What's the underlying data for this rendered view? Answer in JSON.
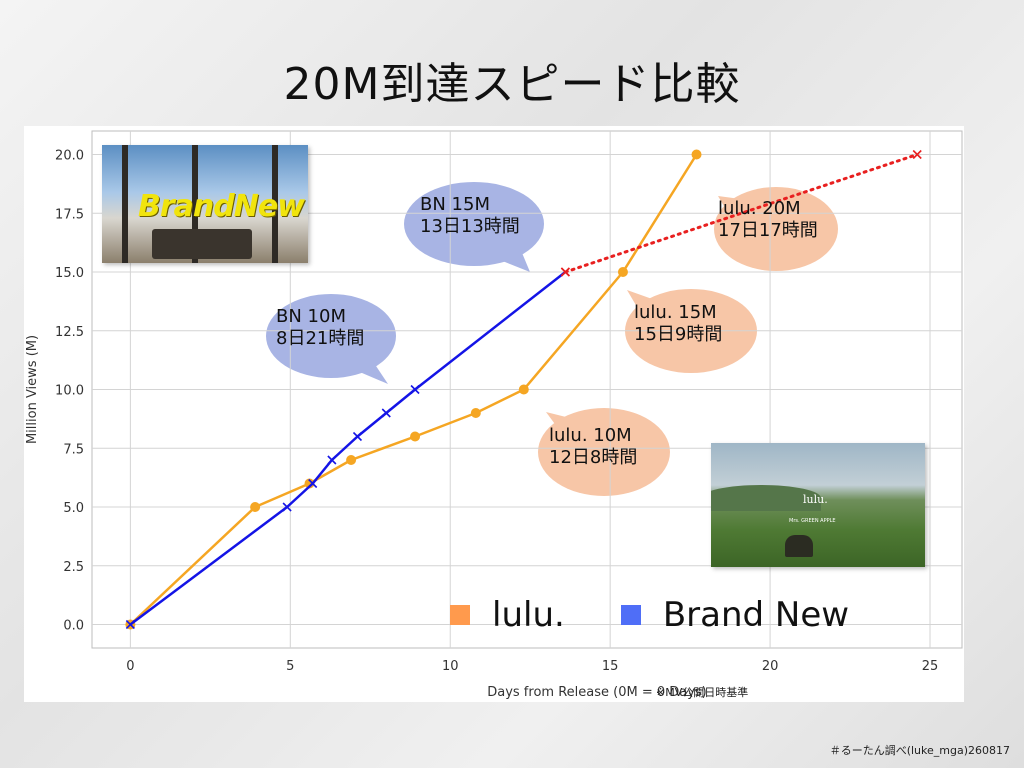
{
  "title": "20M到達スピード比較",
  "note": "※MV公開日時基準",
  "footer": "＃るーたん調べ(luke_mga)260817",
  "chart_data": {
    "type": "line",
    "xlabel": "Days from Release (0M = 0 Days)",
    "ylabel": "Million Views (M)",
    "xlim": [
      -1.2,
      26
    ],
    "ylim": [
      -1,
      21
    ],
    "x_ticks": [
      0,
      5,
      10,
      15,
      20,
      25
    ],
    "y_ticks": [
      0.0,
      2.5,
      5.0,
      7.5,
      10.0,
      12.5,
      15.0,
      17.5,
      20.0
    ],
    "grid": true,
    "legend_position": "bottom-right",
    "series": [
      {
        "name": "lulu.",
        "color": "#f5a623",
        "marker": "circle",
        "x": [
          0,
          3.9,
          5.6,
          6.9,
          8.9,
          10.8,
          12.3,
          15.4,
          17.7
        ],
        "y": [
          0,
          5,
          6,
          7,
          8,
          9,
          10,
          15,
          20
        ]
      },
      {
        "name": "Brand New",
        "color": "#1414e6",
        "marker": "x",
        "x": [
          0,
          4.9,
          5.7,
          6.3,
          7.1,
          8.0,
          8.9,
          13.6
        ],
        "y": [
          0,
          5,
          6,
          7,
          8,
          9,
          10,
          15
        ]
      },
      {
        "name": "Brand New projection",
        "color": "#e82020",
        "style": "dotted",
        "marker": "x",
        "x": [
          13.6,
          24.6
        ],
        "y": [
          15,
          20
        ]
      }
    ],
    "legend": [
      {
        "label": "lulu.",
        "color": "#ff9a4d"
      },
      {
        "label": "Brand New",
        "color": "#4f6ef7"
      }
    ],
    "annotations": [
      {
        "id": "bn15",
        "lines": [
          "BN 15M",
          "13日13時間"
        ],
        "color": "#a8b4e4"
      },
      {
        "id": "bn10",
        "lines": [
          "BN 10M",
          "8日21時間"
        ],
        "color": "#a8b4e4"
      },
      {
        "id": "lulu20",
        "lines": [
          "lulu. 20M",
          "17日17時間"
        ],
        "color": "#f7c6a7"
      },
      {
        "id": "lulu15",
        "lines": [
          "lulu. 15M",
          "15日9時間"
        ],
        "color": "#f7c6a7"
      },
      {
        "id": "lulu10",
        "lines": [
          "lulu. 10M",
          "12日8時間"
        ],
        "color": "#f7c6a7"
      }
    ]
  },
  "thumbnails": {
    "brand_new": {
      "logo_text": "BrandNew"
    },
    "lulu": {
      "logo_text": "lulu.",
      "subtitle": "Mrs. GREEN APPLE"
    }
  }
}
